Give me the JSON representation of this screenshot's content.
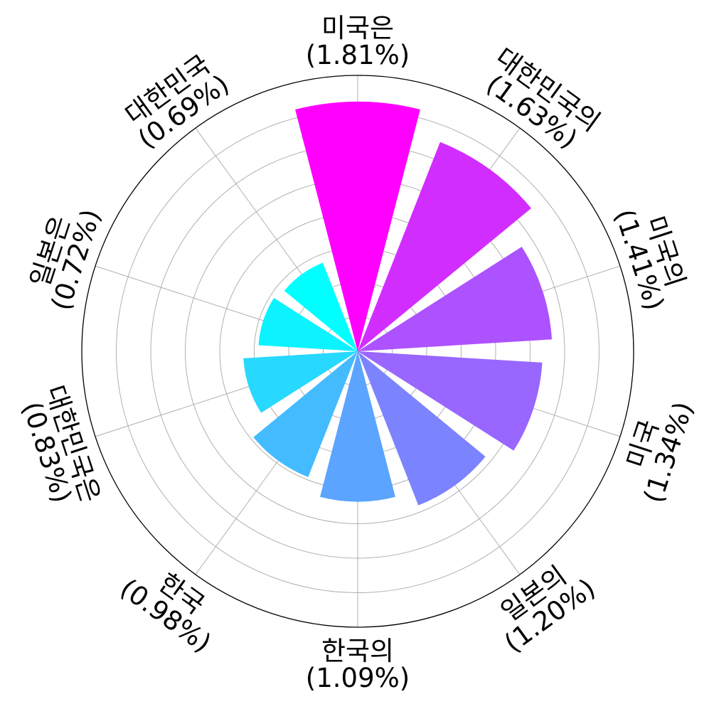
{
  "chart_data": {
    "type": "polar-bar",
    "title": "",
    "start_angle": "top",
    "direction": "clockwise",
    "rlim": [
      0,
      2.0
    ],
    "grid": true,
    "categories": [
      "미국은",
      "대한민국의",
      "미국의",
      "미국",
      "일본의",
      "한국의",
      "한국",
      "대한민국은",
      "일본은",
      "대한민국"
    ],
    "values": [
      1.81,
      1.63,
      1.41,
      1.34,
      1.2,
      1.09,
      0.98,
      0.83,
      0.72,
      0.69
    ],
    "value_labels": [
      "(1.81%)",
      "(1.63%)",
      "(1.41%)",
      "(1.34%)",
      "(1.20%)",
      "(1.09%)",
      "(0.98%)",
      "(0.83%)",
      "(0.72%)",
      "(0.69%)"
    ],
    "colors": [
      "#ff00ff",
      "#d22dff",
      "#ad52ff",
      "#9966ff",
      "#7c83ff",
      "#5ba4ff",
      "#44bbff",
      "#27d8ff",
      "#0cf3ff",
      "#00ffff"
    ],
    "colormap": "cool"
  }
}
